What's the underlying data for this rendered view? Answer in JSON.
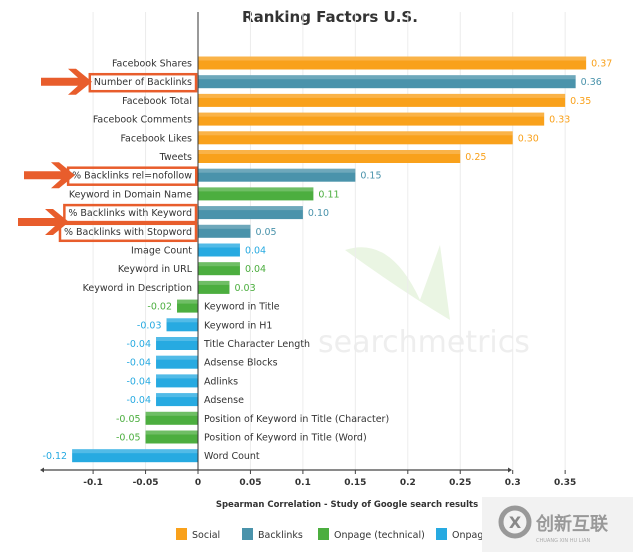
{
  "chart_data": {
    "type": "bar",
    "orientation": "horizontal",
    "title": "Ranking Factors U.S.",
    "xlabel": "Spearman Correlation - Study of Google search results",
    "ylabel": "",
    "xlim": [
      -0.15,
      0.39
    ],
    "xticks": [
      -0.1,
      -0.05,
      0,
      0.05,
      0.1,
      0.15,
      0.2,
      0.25,
      0.3,
      0.35
    ],
    "xtick_labels": [
      "-0.1",
      "-0.05",
      "0",
      "0.05",
      "0.1",
      "0.15",
      "0.2",
      "0.25",
      "0.3",
      "0.35"
    ],
    "grid": true,
    "legend_position": "bottom",
    "series": [
      {
        "name": "Social",
        "color": "#f9a11b"
      },
      {
        "name": "Backlinks",
        "color": "#4a93ab"
      },
      {
        "name": "Onpage (technical)",
        "color": "#4cae3f"
      },
      {
        "name": "Onpage",
        "color": "#27aae1"
      }
    ],
    "categories": [
      "Facebook Shares",
      "Number of Backlinks",
      "Facebook Total",
      "Facebook Comments",
      "Facebook Likes",
      "Tweets",
      "% Backlinks rel=nofollow",
      "Keyword in Domain Name",
      "% Backlinks with Keyword",
      "% Backlinks with Stopword",
      "Image Count",
      "Keyword in URL",
      "Keyword in Description",
      "Keyword in Title",
      "Keyword in H1",
      "Title Character Length",
      "Adsense Blocks",
      "Adlinks",
      "Adsense",
      "Position of Keyword in Title (Character)",
      "Position of Keyword in Title (Word)",
      "Word Count"
    ],
    "values": [
      0.37,
      0.36,
      0.35,
      0.33,
      0.3,
      0.25,
      0.15,
      0.11,
      0.1,
      0.05,
      0.04,
      0.04,
      0.03,
      -0.02,
      -0.03,
      -0.04,
      -0.04,
      -0.04,
      -0.04,
      -0.05,
      -0.05,
      -0.12
    ],
    "value_labels": [
      "0.37",
      "0.36",
      "0.35",
      "0.33",
      "0.30",
      "0.25",
      "0.15",
      "0.11",
      "0.10",
      "0.05",
      "0.04",
      "0.04",
      "0.03",
      "-0.02",
      "-0.03",
      "-0.04",
      "-0.04",
      "-0.04",
      "-0.04",
      "-0.05",
      "-0.05",
      "-0.12"
    ],
    "series_index": [
      0,
      1,
      0,
      0,
      0,
      0,
      1,
      2,
      1,
      1,
      3,
      2,
      2,
      2,
      3,
      3,
      3,
      3,
      3,
      2,
      2,
      3
    ],
    "highlighted": [
      "Number of Backlinks",
      "% Backlinks rel=nofollow",
      "% Backlinks with Keyword",
      "% Backlinks with Stopword"
    ],
    "annotation_color": "#e85d2c"
  },
  "watermarks": {
    "chart_brand": "searchmetrics",
    "corner_logo_cn": "创新互联",
    "corner_logo_en": "CHUANG XIN HU LIAN"
  }
}
